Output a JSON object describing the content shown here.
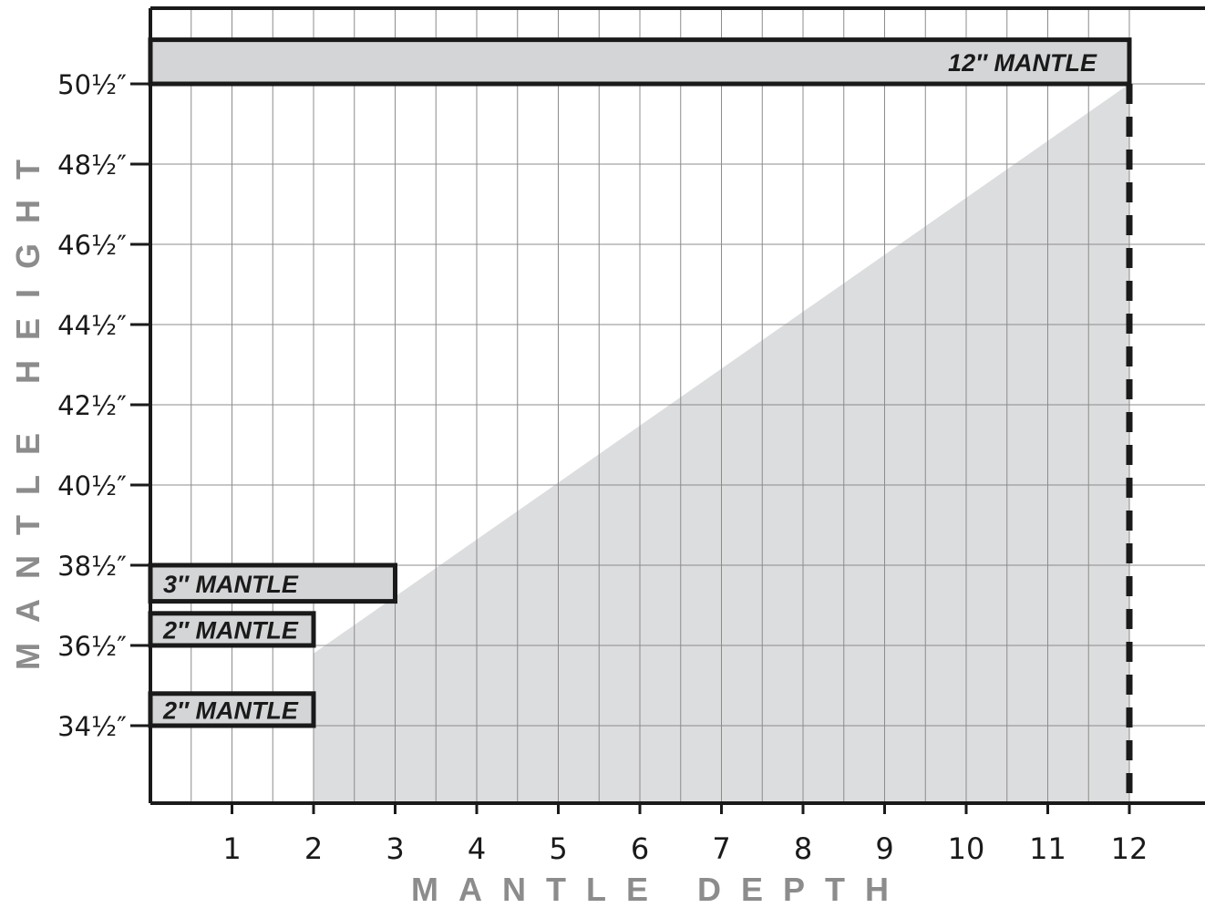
{
  "chart_data": {
    "type": "area",
    "xlabel": "MANTLE DEPTH",
    "ylabel": "MANTLE HEIGHT",
    "xlim": [
      0,
      12.95
    ],
    "ylim": [
      32.4,
      52.2
    ],
    "x_ticks": [
      1,
      2,
      3,
      4,
      5,
      6,
      7,
      8,
      9,
      10,
      11,
      12
    ],
    "x_tick_labels": [
      "1",
      "2",
      "3",
      "4",
      "5",
      "6",
      "7",
      "8",
      "9",
      "10",
      "11",
      "12"
    ],
    "y_ticks": [
      34.5,
      36.5,
      38.5,
      40.5,
      42.5,
      44.5,
      46.5,
      48.5,
      50.5
    ],
    "y_tick_labels": [
      "34½″",
      "36½″",
      "38½″",
      "40½″",
      "42½″",
      "44½″",
      "46½″",
      "48½″",
      "50½″"
    ],
    "grid": true,
    "clearance_region": {
      "name": "",
      "points": [
        [
          0,
          32.4
        ],
        [
          12,
          32.4
        ],
        [
          12,
          50.5
        ],
        [
          2,
          36.3
        ],
        [
          2,
          32.4
        ]
      ]
    },
    "limit_line": {
      "x": 12,
      "style": "dashed"
    },
    "mantles": [
      {
        "label": "12″ MANTLE",
        "depth": 12,
        "bottom": 50.5,
        "top": 51.6
      },
      {
        "label": "3″ MANTLE",
        "depth": 3,
        "bottom": 37.6,
        "top": 38.5
      },
      {
        "label": "2″ MANTLE",
        "depth": 2,
        "bottom": 36.5,
        "top": 37.3
      },
      {
        "label": "2″ MANTLE",
        "depth": 2,
        "bottom": 34.5,
        "top": 35.3
      }
    ],
    "colors": {
      "region": "#dcdddf",
      "mantle_fill": "#d4d5d7",
      "frame": "#1a1a1a",
      "grid": "#8c8c8c",
      "axis_title": "#8c8c8c"
    }
  }
}
